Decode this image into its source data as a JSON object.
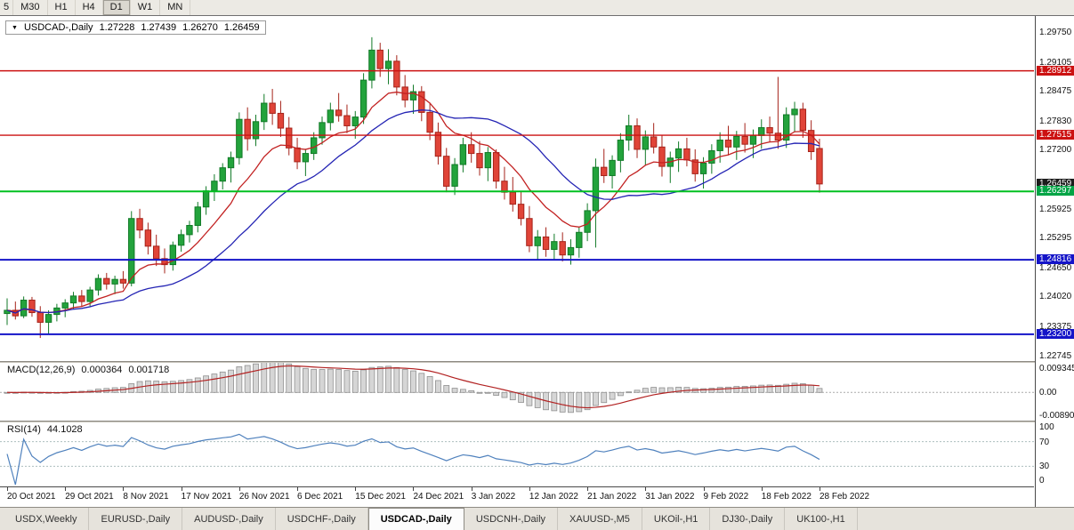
{
  "toolbar": {
    "timeframes": [
      "5",
      "M30",
      "H1",
      "H4",
      "D1",
      "W1",
      "MN"
    ],
    "active": "D1"
  },
  "chart": {
    "symbol_period": "USDCAD-,Daily",
    "open": "1.27228",
    "high": "1.27439",
    "low": "1.26270",
    "close": "1.26459"
  },
  "price_axis": {
    "labels": [
      {
        "text": "1.29750",
        "price": 1.2975
      },
      {
        "text": "1.29105",
        "price": 1.29105
      },
      {
        "text": "1.28475",
        "price": 1.28475
      },
      {
        "text": "1.27830",
        "price": 1.2783
      },
      {
        "text": "1.27200",
        "price": 1.272
      },
      {
        "text": "1.25925",
        "price": 1.25925
      },
      {
        "text": "1.25295",
        "price": 1.25295
      },
      {
        "text": "1.24650",
        "price": 1.2465
      },
      {
        "text": "1.24020",
        "price": 1.2402
      },
      {
        "text": "1.23375",
        "price": 1.23375
      },
      {
        "text": "1.22745",
        "price": 1.22745
      }
    ],
    "badges": [
      {
        "text": "1.28912",
        "price": 1.28912,
        "color": "#cc1111"
      },
      {
        "text": "1.27515",
        "price": 1.27515,
        "color": "#cc1111"
      },
      {
        "text": "1.26459",
        "price": 1.26459,
        "color": "#1c1c1c"
      },
      {
        "text": "1.26297",
        "price": 1.26297,
        "color": "#00a445"
      },
      {
        "text": "1.24816",
        "price": 1.24816,
        "color": "#1414c8"
      },
      {
        "text": "1.23200",
        "price": 1.232,
        "color": "#1414c8"
      }
    ]
  },
  "macd_panel": {
    "title": "MACD(12,26,9)",
    "value_main": "0.000364",
    "value_signal": "0.001718",
    "axis_top": "0.009345",
    "axis_zero": "0.00",
    "axis_bottom": "-0.008905"
  },
  "rsi_panel": {
    "title": "RSI(14)",
    "value": "44.1028",
    "axis": [
      "100",
      "70",
      "30",
      "0"
    ]
  },
  "time_axis": {
    "labels": [
      "20 Oct 2021",
      "29 Oct 2021",
      "8 Nov 2021",
      "17 Nov 2021",
      "26 Nov 2021",
      "6 Dec 2021",
      "15 Dec 2021",
      "24 Dec 2021",
      "3 Jan 2022",
      "12 Jan 2022",
      "21 Jan 2022",
      "31 Jan 2022",
      "9 Feb 2022",
      "18 Feb 2022",
      "28 Feb 2022"
    ]
  },
  "tabs": {
    "items": [
      "USDX,Weekly",
      "EURUSD-,Daily",
      "AUDUSD-,Daily",
      "USDCHF-,Daily",
      "USDCAD-,Daily",
      "USDCNH-,Daily",
      "XAUUSD-,M5",
      "UKOil-,H1",
      "DJ30-,Daily",
      "UK100-,H1"
    ],
    "active_index": 4
  },
  "chart_data": {
    "type": "candlestick",
    "symbol": "USDCAD-",
    "timeframe": "Daily",
    "title": "USDCAD-,Daily 1.27228 1.27439 1.26270 1.26459",
    "y_range": [
      1.2262,
      1.301
    ],
    "layout": {
      "x0": 8,
      "step": 9.316,
      "bar_width": 6.4
    },
    "colors": {
      "up": "#23a33c",
      "up_stroke": "#117a27",
      "down": "#e04438",
      "down_stroke": "#a5231a",
      "ma_fast": "#c22121",
      "ma_slow": "#2424b4",
      "background": "#ffffff"
    },
    "hlines": [
      {
        "price": 1.28912,
        "color": "#cc1111",
        "width": 1.4
      },
      {
        "price": 1.27515,
        "color": "#cc1111",
        "width": 1.4
      },
      {
        "price": 1.26297,
        "color": "#00c020",
        "width": 2
      },
      {
        "price": 1.24816,
        "color": "#1414c8",
        "width": 2
      },
      {
        "price": 1.232,
        "color": "#1414c8",
        "width": 2
      }
    ],
    "moving_averages": [
      {
        "type": "EMA",
        "period": 10,
        "color_key": "ma_fast"
      },
      {
        "type": "SMA",
        "period": 21,
        "color_key": "ma_slow"
      }
    ],
    "tick_indices": [
      0,
      7,
      14,
      21,
      28,
      35,
      42,
      49,
      56,
      63,
      70,
      77,
      84,
      91,
      98
    ],
    "candles": [
      [
        1.2365,
        1.2398,
        1.234,
        1.2372
      ],
      [
        1.2372,
        1.2391,
        1.2352,
        1.236
      ],
      [
        1.236,
        1.2402,
        1.2355,
        1.2394
      ],
      [
        1.2394,
        1.2401,
        1.2358,
        1.2367
      ],
      [
        1.2367,
        1.2381,
        1.2312,
        1.2346
      ],
      [
        1.2346,
        1.2372,
        1.232,
        1.2363
      ],
      [
        1.2363,
        1.2386,
        1.2348,
        1.2377
      ],
      [
        1.2377,
        1.2396,
        1.2357,
        1.2388
      ],
      [
        1.2388,
        1.2412,
        1.2374,
        1.2403
      ],
      [
        1.2403,
        1.2416,
        1.2379,
        1.2391
      ],
      [
        1.2391,
        1.2423,
        1.2381,
        1.2416
      ],
      [
        1.2416,
        1.245,
        1.2404,
        1.2441
      ],
      [
        1.2441,
        1.2453,
        1.2417,
        1.2429
      ],
      [
        1.2429,
        1.2447,
        1.2407,
        1.2439
      ],
      [
        1.2439,
        1.2457,
        1.2419,
        1.2431
      ],
      [
        1.2431,
        1.2587,
        1.2424,
        1.2571
      ],
      [
        1.2571,
        1.2592,
        1.2528,
        1.2546
      ],
      [
        1.2546,
        1.2562,
        1.2493,
        1.2511
      ],
      [
        1.2511,
        1.2536,
        1.2468,
        1.2484
      ],
      [
        1.2484,
        1.2506,
        1.2452,
        1.2471
      ],
      [
        1.2471,
        1.2521,
        1.2458,
        1.2513
      ],
      [
        1.2513,
        1.2547,
        1.2499,
        1.2536
      ],
      [
        1.2536,
        1.2566,
        1.2519,
        1.2556
      ],
      [
        1.2556,
        1.2607,
        1.2541,
        1.2596
      ],
      [
        1.2596,
        1.2641,
        1.2579,
        1.2631
      ],
      [
        1.2631,
        1.2667,
        1.2609,
        1.2652
      ],
      [
        1.2652,
        1.2691,
        1.2634,
        1.2681
      ],
      [
        1.2681,
        1.2716,
        1.2649,
        1.2703
      ],
      [
        1.2703,
        1.2801,
        1.2688,
        1.2786
      ],
      [
        1.2786,
        1.2812,
        1.2718,
        1.2744
      ],
      [
        1.2744,
        1.2796,
        1.2728,
        1.2781
      ],
      [
        1.2781,
        1.2841,
        1.2763,
        1.2821
      ],
      [
        1.2821,
        1.2852,
        1.2774,
        1.2799
      ],
      [
        1.2799,
        1.2826,
        1.2748,
        1.2767
      ],
      [
        1.2767,
        1.2791,
        1.2708,
        1.2724
      ],
      [
        1.2724,
        1.2746,
        1.2678,
        1.2694
      ],
      [
        1.2694,
        1.2722,
        1.2663,
        1.2712
      ],
      [
        1.2712,
        1.2758,
        1.2698,
        1.2746
      ],
      [
        1.2746,
        1.2792,
        1.2731,
        1.2779
      ],
      [
        1.2779,
        1.2822,
        1.2762,
        1.2806
      ],
      [
        1.2806,
        1.2843,
        1.2781,
        1.2794
      ],
      [
        1.2794,
        1.2818,
        1.2756,
        1.2772
      ],
      [
        1.2772,
        1.2804,
        1.2744,
        1.2791
      ],
      [
        1.2791,
        1.2886,
        1.2776,
        1.2871
      ],
      [
        1.2871,
        1.2964,
        1.2853,
        1.2936
      ],
      [
        1.2936,
        1.2952,
        1.2878,
        1.2896
      ],
      [
        1.2896,
        1.2938,
        1.2862,
        1.2912
      ],
      [
        1.2912,
        1.2925,
        1.2838,
        1.2856
      ],
      [
        1.2856,
        1.2882,
        1.2812,
        1.2828
      ],
      [
        1.2828,
        1.2861,
        1.2798,
        1.2846
      ],
      [
        1.2846,
        1.2858,
        1.2782,
        1.2801
      ],
      [
        1.2801,
        1.2822,
        1.2741,
        1.2758
      ],
      [
        1.2758,
        1.2779,
        1.2688,
        1.2706
      ],
      [
        1.2706,
        1.2724,
        1.2628,
        1.2641
      ],
      [
        1.2641,
        1.2702,
        1.2622,
        1.2688
      ],
      [
        1.2688,
        1.2746,
        1.2671,
        1.2731
      ],
      [
        1.2731,
        1.2758,
        1.2692,
        1.2712
      ],
      [
        1.2712,
        1.2739,
        1.2664,
        1.2681
      ],
      [
        1.2681,
        1.2726,
        1.2652,
        1.2714
      ],
      [
        1.2714,
        1.2721,
        1.2636,
        1.2652
      ],
      [
        1.2652,
        1.2683,
        1.2612,
        1.2628
      ],
      [
        1.2628,
        1.2661,
        1.2586,
        1.2602
      ],
      [
        1.2602,
        1.2631,
        1.2556,
        1.2571
      ],
      [
        1.2571,
        1.2598,
        1.2498,
        1.2512
      ],
      [
        1.2512,
        1.2546,
        1.2481,
        1.2531
      ],
      [
        1.2531,
        1.2552,
        1.2488,
        1.2504
      ],
      [
        1.2504,
        1.2538,
        1.2482,
        1.2521
      ],
      [
        1.2521,
        1.2541,
        1.2478,
        1.2492
      ],
      [
        1.2492,
        1.2526,
        1.2471,
        1.2508
      ],
      [
        1.2508,
        1.2552,
        1.2486,
        1.2541
      ],
      [
        1.2541,
        1.2604,
        1.2522,
        1.2588
      ],
      [
        1.2588,
        1.2701,
        1.2508,
        1.2682
      ],
      [
        1.2682,
        1.2722,
        1.2648,
        1.2664
      ],
      [
        1.2664,
        1.2708,
        1.2636,
        1.2697
      ],
      [
        1.2697,
        1.2756,
        1.2671,
        1.2741
      ],
      [
        1.2741,
        1.2796,
        1.2718,
        1.2772
      ],
      [
        1.2772,
        1.2788,
        1.2702,
        1.2721
      ],
      [
        1.2721,
        1.2762,
        1.2686,
        1.2748
      ],
      [
        1.2748,
        1.2778,
        1.2712,
        1.2726
      ],
      [
        1.2726,
        1.2752,
        1.2662,
        1.2684
      ],
      [
        1.2684,
        1.2716,
        1.2648,
        1.2702
      ],
      [
        1.2702,
        1.2738,
        1.2672,
        1.2722
      ],
      [
        1.2722,
        1.2746,
        1.2684,
        1.2698
      ],
      [
        1.2698,
        1.2721,
        1.2651,
        1.2668
      ],
      [
        1.2668,
        1.2704,
        1.2636,
        1.2691
      ],
      [
        1.2691,
        1.2732,
        1.2668,
        1.2718
      ],
      [
        1.2718,
        1.2758,
        1.2692,
        1.2741
      ],
      [
        1.2741,
        1.2772,
        1.2708,
        1.2726
      ],
      [
        1.2726,
        1.2761,
        1.2698,
        1.2749
      ],
      [
        1.2749,
        1.2778,
        1.2714,
        1.2732
      ],
      [
        1.2732,
        1.2764,
        1.2702,
        1.2751
      ],
      [
        1.2751,
        1.2786,
        1.2722,
        1.2768
      ],
      [
        1.2768,
        1.2792,
        1.2736,
        1.2756
      ],
      [
        1.2756,
        1.2878,
        1.2722,
        1.2741
      ],
      [
        1.2741,
        1.2812,
        1.2724,
        1.2796
      ],
      [
        1.2796,
        1.2824,
        1.2758,
        1.2808
      ],
      [
        1.2808,
        1.2822,
        1.2746,
        1.2762
      ],
      [
        1.2762,
        1.2784,
        1.2698,
        1.2716
      ],
      [
        1.27228,
        1.27439,
        1.2627,
        1.26459
      ]
    ],
    "macd": {
      "fast": 12,
      "slow": 26,
      "signal": 9,
      "range": [
        -0.008905,
        0.009345
      ],
      "current_main": 0.000364,
      "current_signal": 0.001718,
      "histogram_fill": "#d6d6d6",
      "histogram_stroke": "#8f8f8f",
      "signal_color": "#b22222"
    },
    "rsi": {
      "period": 14,
      "current": 44.1028,
      "levels": [
        70,
        30
      ],
      "level_color": "#9fb3b3",
      "color": "#4f81bd"
    }
  }
}
